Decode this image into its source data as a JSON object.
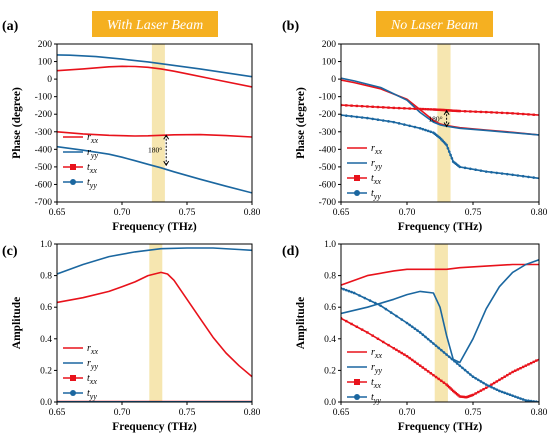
{
  "colors": {
    "red": "#e8121b",
    "blue": "#1b67a0",
    "band": "#f6e6b0",
    "banner": "#f5b021"
  },
  "chart_data": [
    {
      "id": "a",
      "panel_label": "(a)",
      "banner": "With Laser Beam",
      "type": "line",
      "xlabel": "Frequency (THz)",
      "ylabel": "Phase (degree)",
      "xlim": [
        0.65,
        0.8
      ],
      "ylim": [
        -700,
        200
      ],
      "xticks": [
        "0.65",
        "0.70",
        "0.75",
        "0.80"
      ],
      "yticks": [
        "-700",
        "-600",
        "-500",
        "-400",
        "-300",
        "-200",
        "-100",
        "0",
        "100",
        "200"
      ],
      "band": [
        0.723,
        0.733
      ],
      "annotation": "180°",
      "legend": [
        "r_xx",
        "r_yy",
        "t_xx",
        "t_yy"
      ],
      "series": [
        {
          "name": "r_xx",
          "style": "line-red",
          "x": [
            0.65,
            0.67,
            0.69,
            0.7,
            0.71,
            0.72,
            0.73,
            0.74,
            0.75,
            0.77,
            0.8
          ],
          "y": [
            48,
            58,
            70,
            73,
            72,
            67,
            58,
            45,
            30,
            0,
            -45
          ]
        },
        {
          "name": "r_yy",
          "style": "line-blue",
          "x": [
            0.65,
            0.66,
            0.68,
            0.7,
            0.72,
            0.74,
            0.76,
            0.78,
            0.8
          ],
          "y": [
            138,
            136,
            128,
            114,
            98,
            78,
            58,
            36,
            14
          ]
        },
        {
          "name": "t_xx",
          "style": "line-red",
          "x": [
            0.65,
            0.67,
            0.69,
            0.71,
            0.72,
            0.73,
            0.74,
            0.76,
            0.78,
            0.8
          ],
          "y": [
            -300,
            -312,
            -320,
            -324,
            -323,
            -320,
            -317,
            -316,
            -322,
            -330
          ]
        },
        {
          "name": "t_yy",
          "style": "line-blue",
          "x": [
            0.65,
            0.67,
            0.69,
            0.7,
            0.71,
            0.72,
            0.73,
            0.74,
            0.76,
            0.78,
            0.8
          ],
          "y": [
            -385,
            -405,
            -428,
            -445,
            -465,
            -485,
            -505,
            -528,
            -570,
            -610,
            -648
          ]
        }
      ]
    },
    {
      "id": "b",
      "panel_label": "(b)",
      "banner": "No Laser Beam",
      "type": "line",
      "xlabel": "Frequency (THz)",
      "ylabel": "Phase (degree)",
      "xlim": [
        0.65,
        0.8
      ],
      "ylim": [
        -700,
        200
      ],
      "xticks": [
        "0.65",
        "0.70",
        "0.75",
        "0.80"
      ],
      "yticks": [
        "-700",
        "-600",
        "-500",
        "-400",
        "-300",
        "-200",
        "-100",
        "0",
        "100",
        "200"
      ],
      "band": [
        0.723,
        0.733
      ],
      "annotation": "180°",
      "legend": [
        "r_xx",
        "r_yy",
        "t_xx",
        "t_yy"
      ],
      "series": [
        {
          "name": "r_xx",
          "style": "line-red",
          "x": [
            0.65,
            0.66,
            0.68,
            0.7,
            0.71,
            0.72,
            0.725,
            0.73,
            0.74,
            0.76,
            0.78,
            0.8
          ],
          "y": [
            -5,
            -20,
            -55,
            -115,
            -175,
            -235,
            -255,
            -265,
            -277,
            -290,
            -303,
            -318
          ]
        },
        {
          "name": "r_yy",
          "style": "line-blue",
          "x": [
            0.65,
            0.66,
            0.68,
            0.7,
            0.71,
            0.72,
            0.725,
            0.73,
            0.74,
            0.76,
            0.78,
            0.8
          ],
          "y": [
            5,
            -10,
            -48,
            -120,
            -190,
            -245,
            -260,
            -268,
            -280,
            -292,
            -305,
            -318
          ]
        },
        {
          "name": "t_xx",
          "style": "markers-red",
          "x": [
            0.65,
            0.67,
            0.69,
            0.71,
            0.72,
            0.725,
            0.73,
            0.735,
            0.74,
            0.76,
            0.78,
            0.8
          ],
          "y": [
            -148,
            -156,
            -164,
            -170,
            -173,
            -175,
            -177,
            -180,
            -182,
            -188,
            -195,
            -205
          ]
        },
        {
          "name": "t_yy",
          "style": "markers-blue",
          "x": [
            0.65,
            0.67,
            0.69,
            0.71,
            0.72,
            0.725,
            0.73,
            0.735,
            0.74,
            0.76,
            0.78,
            0.8
          ],
          "y": [
            -205,
            -222,
            -245,
            -280,
            -305,
            -335,
            -375,
            -470,
            -500,
            -527,
            -545,
            -565
          ]
        }
      ]
    },
    {
      "id": "c",
      "panel_label": "(c)",
      "type": "line",
      "xlabel": "Frequency (THz)",
      "ylabel": "Amplitude",
      "xlim": [
        0.65,
        0.8
      ],
      "ylim": [
        0.0,
        1.0
      ],
      "xticks": [
        "0.65",
        "0.70",
        "0.75",
        "0.80"
      ],
      "yticks": [
        "0.0",
        "0.2",
        "0.4",
        "0.6",
        "0.8",
        "1.0"
      ],
      "band": [
        0.721,
        0.731
      ],
      "legend": [
        "r_xx",
        "r_yy",
        "t_xx",
        "t_yy"
      ],
      "series": [
        {
          "name": "r_xx",
          "style": "line-red",
          "x": [
            0.65,
            0.67,
            0.69,
            0.7,
            0.71,
            0.72,
            0.73,
            0.735,
            0.74,
            0.75,
            0.76,
            0.77,
            0.78,
            0.79,
            0.8
          ],
          "y": [
            0.63,
            0.66,
            0.7,
            0.73,
            0.76,
            0.8,
            0.82,
            0.81,
            0.77,
            0.65,
            0.53,
            0.41,
            0.31,
            0.23,
            0.16
          ]
        },
        {
          "name": "r_yy",
          "style": "line-blue",
          "x": [
            0.65,
            0.67,
            0.69,
            0.71,
            0.73,
            0.75,
            0.77,
            0.79,
            0.8
          ],
          "y": [
            0.81,
            0.87,
            0.92,
            0.95,
            0.97,
            0.975,
            0.975,
            0.965,
            0.96
          ]
        },
        {
          "name": "t_xx",
          "style": "line-red",
          "x": [
            0.65,
            0.8
          ],
          "y": [
            0.003,
            0.003
          ]
        },
        {
          "name": "t_yy",
          "style": "line-blue",
          "x": [
            0.65,
            0.8
          ],
          "y": [
            0.001,
            0.001
          ]
        }
      ]
    },
    {
      "id": "d",
      "panel_label": "(d)",
      "type": "line",
      "xlabel": "Frequency (THz)",
      "ylabel": "Amplitude",
      "xlim": [
        0.65,
        0.8
      ],
      "ylim": [
        0.0,
        1.0
      ],
      "xticks": [
        "0.65",
        "0.70",
        "0.75",
        "0.80"
      ],
      "yticks": [
        "0.0",
        "0.2",
        "0.4",
        "0.6",
        "0.8",
        "1.0"
      ],
      "band": [
        0.721,
        0.731
      ],
      "legend": [
        "r_xx",
        "r_yy",
        "t_xx",
        "t_yy"
      ],
      "series": [
        {
          "name": "r_xx",
          "style": "line-red",
          "x": [
            0.65,
            0.67,
            0.69,
            0.7,
            0.72,
            0.73,
            0.74,
            0.76,
            0.78,
            0.8
          ],
          "y": [
            0.74,
            0.8,
            0.83,
            0.84,
            0.84,
            0.84,
            0.85,
            0.86,
            0.87,
            0.87
          ]
        },
        {
          "name": "r_yy",
          "style": "line-blue",
          "x": [
            0.65,
            0.67,
            0.69,
            0.7,
            0.71,
            0.72,
            0.725,
            0.73,
            0.735,
            0.74,
            0.75,
            0.76,
            0.77,
            0.78,
            0.79,
            0.8
          ],
          "y": [
            0.56,
            0.6,
            0.65,
            0.68,
            0.7,
            0.69,
            0.6,
            0.42,
            0.27,
            0.25,
            0.4,
            0.59,
            0.73,
            0.82,
            0.87,
            0.9
          ]
        },
        {
          "name": "t_xx",
          "style": "markers-red",
          "x": [
            0.65,
            0.67,
            0.69,
            0.7,
            0.71,
            0.72,
            0.73,
            0.735,
            0.74,
            0.745,
            0.75,
            0.76,
            0.77,
            0.78,
            0.79,
            0.8
          ],
          "y": [
            0.53,
            0.44,
            0.34,
            0.29,
            0.23,
            0.17,
            0.11,
            0.07,
            0.035,
            0.03,
            0.045,
            0.09,
            0.14,
            0.19,
            0.23,
            0.27
          ]
        },
        {
          "name": "t_yy",
          "style": "markers-blue",
          "x": [
            0.65,
            0.66,
            0.68,
            0.7,
            0.71,
            0.72,
            0.73,
            0.74,
            0.75,
            0.76,
            0.77,
            0.78,
            0.79,
            0.8
          ],
          "y": [
            0.72,
            0.69,
            0.61,
            0.5,
            0.44,
            0.37,
            0.3,
            0.23,
            0.16,
            0.11,
            0.07,
            0.04,
            0.01,
            0.0
          ]
        }
      ]
    }
  ]
}
